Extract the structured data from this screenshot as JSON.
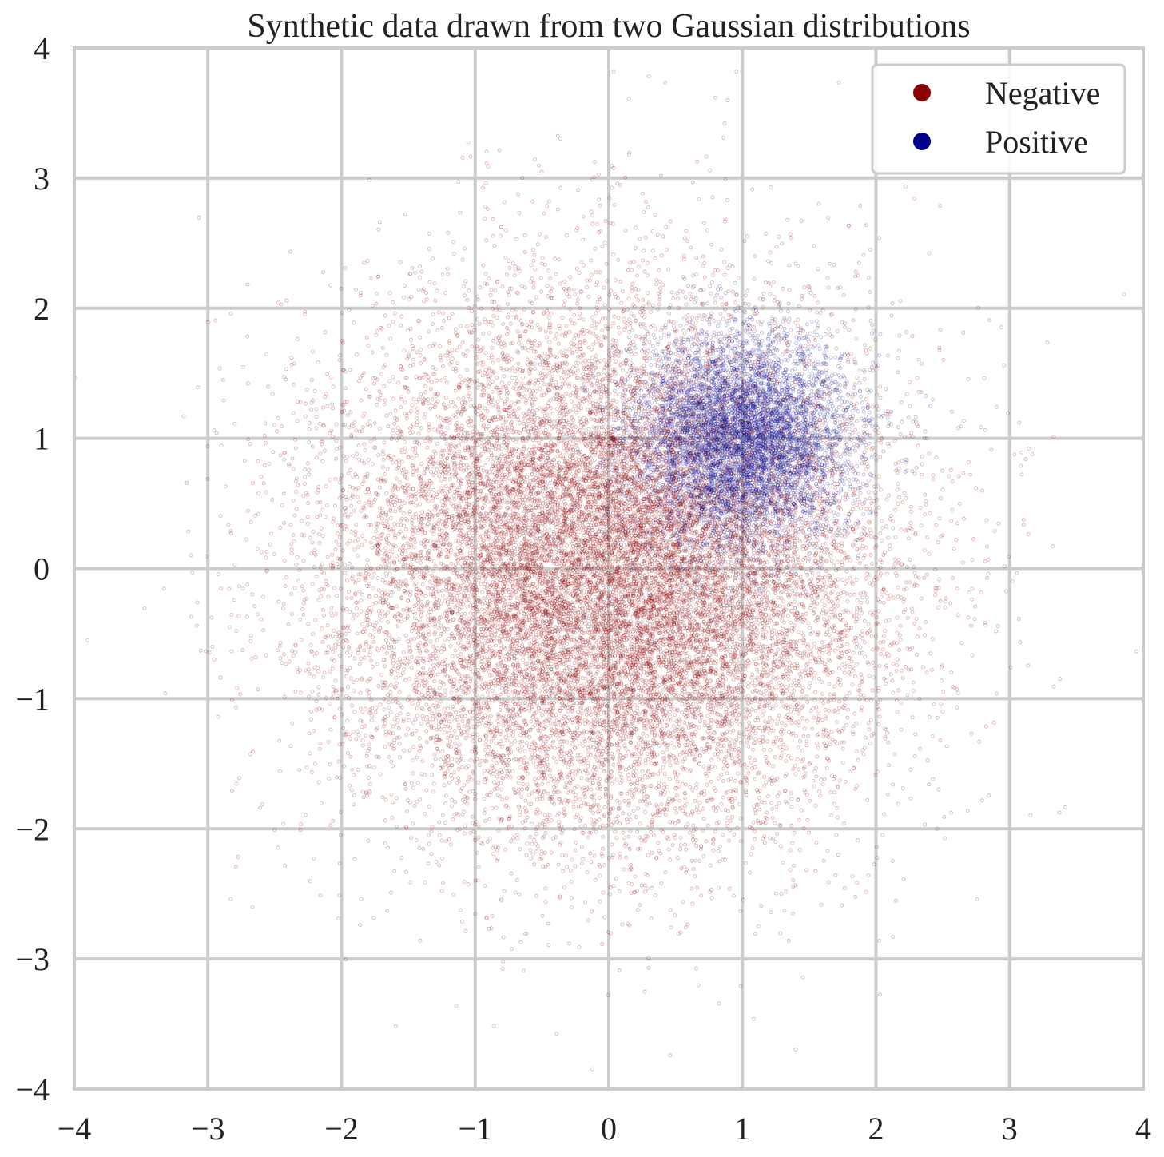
{
  "chart_data": {
    "type": "scatter",
    "title": "Synthetic data drawn from two Gaussian distributions",
    "xlabel": "",
    "ylabel": "",
    "xlim": [
      -4,
      4
    ],
    "ylim": [
      -4,
      4
    ],
    "grid": true,
    "x_ticks": [
      -4,
      -3,
      -2,
      -1,
      0,
      1,
      2,
      3,
      4
    ],
    "y_ticks": [
      -4,
      -3,
      -2,
      -1,
      0,
      1,
      2,
      3,
      4
    ],
    "x_tick_labels": [
      "−4",
      "−3",
      "−2",
      "−1",
      "0",
      "1",
      "2",
      "3",
      "4"
    ],
    "y_tick_labels": [
      "−4",
      "−3",
      "−2",
      "−1",
      "0",
      "1",
      "2",
      "3",
      "4"
    ],
    "legend_position": "top-right",
    "series": [
      {
        "name": "Negative",
        "color": "#8b0000",
        "distribution": "gaussian",
        "mean": [
          0,
          0
        ],
        "std": [
          1.0,
          1.0
        ],
        "approx_count": 20000,
        "marker": "hollow-circle"
      },
      {
        "name": "Positive",
        "color": "#00008b",
        "distribution": "gaussian",
        "mean": [
          1,
          1
        ],
        "std": [
          0.4,
          0.4
        ],
        "approx_count": 6000,
        "marker": "hollow-circle"
      }
    ]
  },
  "colors": {
    "grid": "#cccccc",
    "axis_frame": "#cccccc",
    "text": "#222222",
    "background": "#ffffff"
  }
}
